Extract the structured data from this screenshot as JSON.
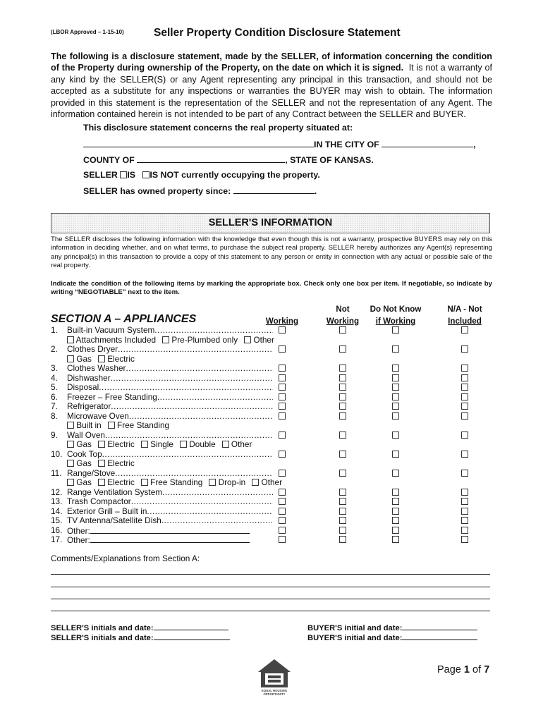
{
  "header": {
    "approval": "(LBOR Approved – 1-15-10)",
    "title": "Seller Property Condition Disclosure Statement"
  },
  "intro": {
    "bold": "The following is a disclosure statement, made by the SELLER, of information concerning the condition of the Property during ownership of the Property, on the date on which it is signed.",
    "normal": "It is not a warranty of any kind by the SELLER(S) or any Agent representing any principal in this transaction, and should not be accepted as a substitute for any inspections or warranties the BUYER may wish to obtain.  The information provided in this statement is the representation of the SELLER and not the representation of any Agent.  The information contained herein is not intended to be part of any Contract between the SELLER and BUYER."
  },
  "property": {
    "heading": "This disclosure statement concerns the real property situated at:",
    "city_label": "IN THE CITY OF",
    "county_label": "COUNTY OF",
    "state_label": ", STATE OF KANSAS.",
    "seller_label": "SELLER",
    "is_label": "IS",
    "is_not_label": "IS NOT currently occupying the property.",
    "owned_since_label": "SELLER has owned property since:"
  },
  "sellers_info": {
    "title": "SELLER'S INFORMATION",
    "paragraph": "The SELLER discloses the following information with the knowledge that even though this is not a warranty, prospective BUYERS may rely on this information in deciding whether, and on what terms, to purchase the subject real property.  SELLER hereby authorizes any Agent(s) representing any principal(s) in this transaction to provide a copy of this statement to any person or entity in connection with any actual or possible sale of the real property.",
    "instructions": "Indicate the condition of the following items by marking the appropriate box.  Check only one box per item.  If negotiable, so indicate by writing “NEGOTIABLE” next to the item."
  },
  "section_a": {
    "title": "SECTION A – APPLIANCES",
    "columns": [
      {
        "top": "",
        "bottom": "Working"
      },
      {
        "top": "Not",
        "bottom": "Working"
      },
      {
        "top": "Do Not Know",
        "bottom": "if Working"
      },
      {
        "top": "N/A - Not",
        "bottom": "Included"
      }
    ],
    "items": [
      {
        "num": "1.",
        "label": "Built-in Vacuum System",
        "options": [
          "Attachments Included",
          "Pre-Plumbed only",
          "Other"
        ]
      },
      {
        "num": "2.",
        "label": "Clothes Dryer",
        "options": [
          "Gas",
          "Electric"
        ]
      },
      {
        "num": "3.",
        "label": "Clothes Washer"
      },
      {
        "num": "4.",
        "label": "Dishwasher"
      },
      {
        "num": "5.",
        "label": "Disposal"
      },
      {
        "num": "6.",
        "label": "Freezer – Free Standing"
      },
      {
        "num": "7.",
        "label": "Refrigerator"
      },
      {
        "num": "8.",
        "label": "Microwave Oven",
        "options": [
          "Built in",
          "Free Standing"
        ]
      },
      {
        "num": "9.",
        "label": "Wall Oven",
        "options": [
          "Gas",
          "Electric",
          "Single",
          "Double",
          "Other"
        ]
      },
      {
        "num": "10.",
        "label": "Cook Top",
        "options": [
          "Gas",
          "Electric"
        ]
      },
      {
        "num": "11.",
        "label": "Range/Stove",
        "options": [
          "Gas",
          "Electric",
          "Free Standing",
          "Drop-in",
          "Other"
        ]
      },
      {
        "num": "12.",
        "label": "Range Ventilation System"
      },
      {
        "num": "13.",
        "label": "Trash Compactor"
      },
      {
        "num": "14.",
        "label": "Exterior Grill – Built in"
      },
      {
        "num": "15.",
        "label": "TV Antenna/Satellite Dish"
      },
      {
        "num": "16.",
        "label": "Other:",
        "blank": true
      },
      {
        "num": "17.",
        "label": "Other:",
        "blank": true
      }
    ],
    "comments_label": "Comments/Explanations from Section A:"
  },
  "initials": {
    "seller_1": "SELLER'S initials and date:",
    "seller_2": "SELLER'S initials and date:",
    "buyer_1": "BUYER'S initial and date:",
    "buyer_2": "BUYER'S initial and date:"
  },
  "footer": {
    "logo_text": "EQUAL HOUSING OPPORTUNITY",
    "page_prefix": "Page",
    "page_current": "1",
    "page_of": "of",
    "page_total": "7"
  }
}
